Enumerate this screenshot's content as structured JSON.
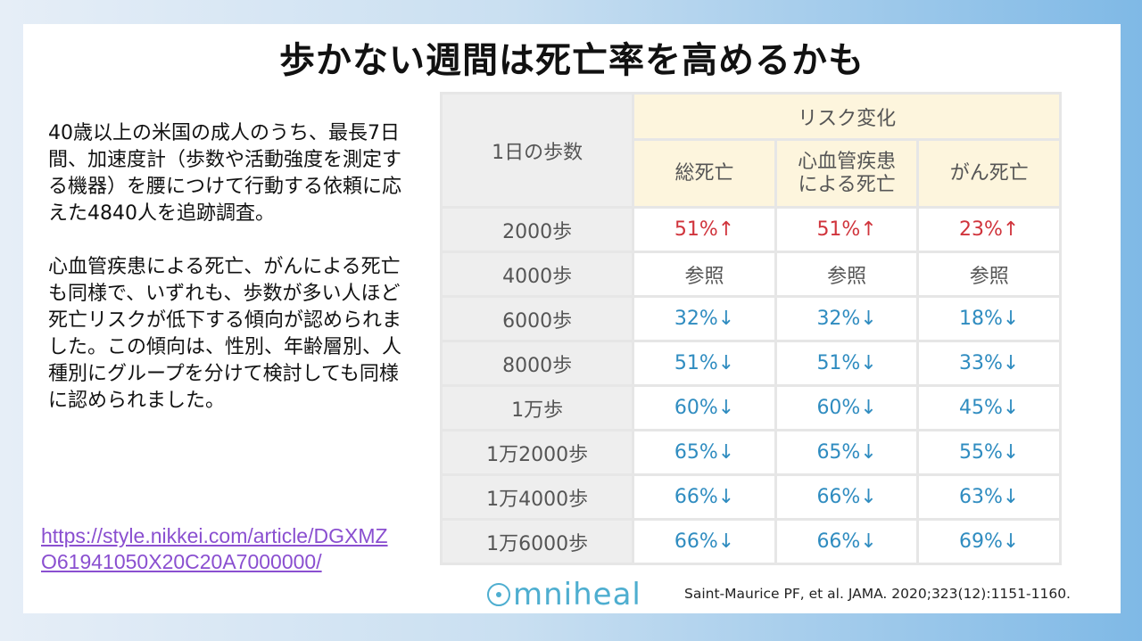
{
  "title": "歩かない週間は死亡率を高めるかも",
  "paragraphs": [
    "40歳以上の米国の成人のうち、最長7日間、加速度計（歩数や活動強度を測定する機器）を腰につけて行動する依頼に応えた4840人を追跡調査。",
    "心血管疾患による死亡、がんによる死亡も同様で、いずれも、歩数が多い人ほど死亡リスクが低下する傾向が認められました。この傾向は、性別、年齢層別、人種別にグループを分けて検討しても同様に認められました。"
  ],
  "link": "https://style.nikkei.com/article/DGXMZO61941050X20C20A7000000/",
  "table": {
    "corner_label": "1日の歩数",
    "group_header": "リスク変化",
    "columns": [
      "総死亡",
      "心血管疾患による死亡",
      "がん死亡"
    ],
    "columns_display": [
      [
        "総死亡"
      ],
      [
        "心血管疾患",
        "による死亡"
      ],
      [
        "がん死亡"
      ]
    ],
    "rows": [
      {
        "label": "2000歩",
        "values": [
          "51%↑",
          "51%↑",
          "23%↑"
        ],
        "trend": "up"
      },
      {
        "label": "4000歩",
        "values": [
          "参照",
          "参照",
          "参照"
        ],
        "trend": "ref"
      },
      {
        "label": "6000歩",
        "values": [
          "32%↓",
          "32%↓",
          "18%↓"
        ],
        "trend": "down"
      },
      {
        "label": "8000歩",
        "values": [
          "51%↓",
          "51%↓",
          "33%↓"
        ],
        "trend": "down"
      },
      {
        "label": "1万歩",
        "values": [
          "60%↓",
          "60%↓",
          "45%↓"
        ],
        "trend": "down"
      },
      {
        "label": "1万2000歩",
        "values": [
          "65%↓",
          "65%↓",
          "55%↓"
        ],
        "trend": "down"
      },
      {
        "label": "1万4000歩",
        "values": [
          "66%↓",
          "66%↓",
          "63%↓"
        ],
        "trend": "down"
      },
      {
        "label": "1万6000歩",
        "values": [
          "66%↓",
          "66%↓",
          "69%↓"
        ],
        "trend": "down"
      }
    ]
  },
  "colors": {
    "up": "#d0343c",
    "down": "#2f8cc0",
    "header_bg": "#fdf5dd",
    "logo": "#4eaed0"
  },
  "logo_text": "mniheal",
  "citation": "Saint-Maurice PF, et al. JAMA. 2020;323(12):1151-1160."
}
